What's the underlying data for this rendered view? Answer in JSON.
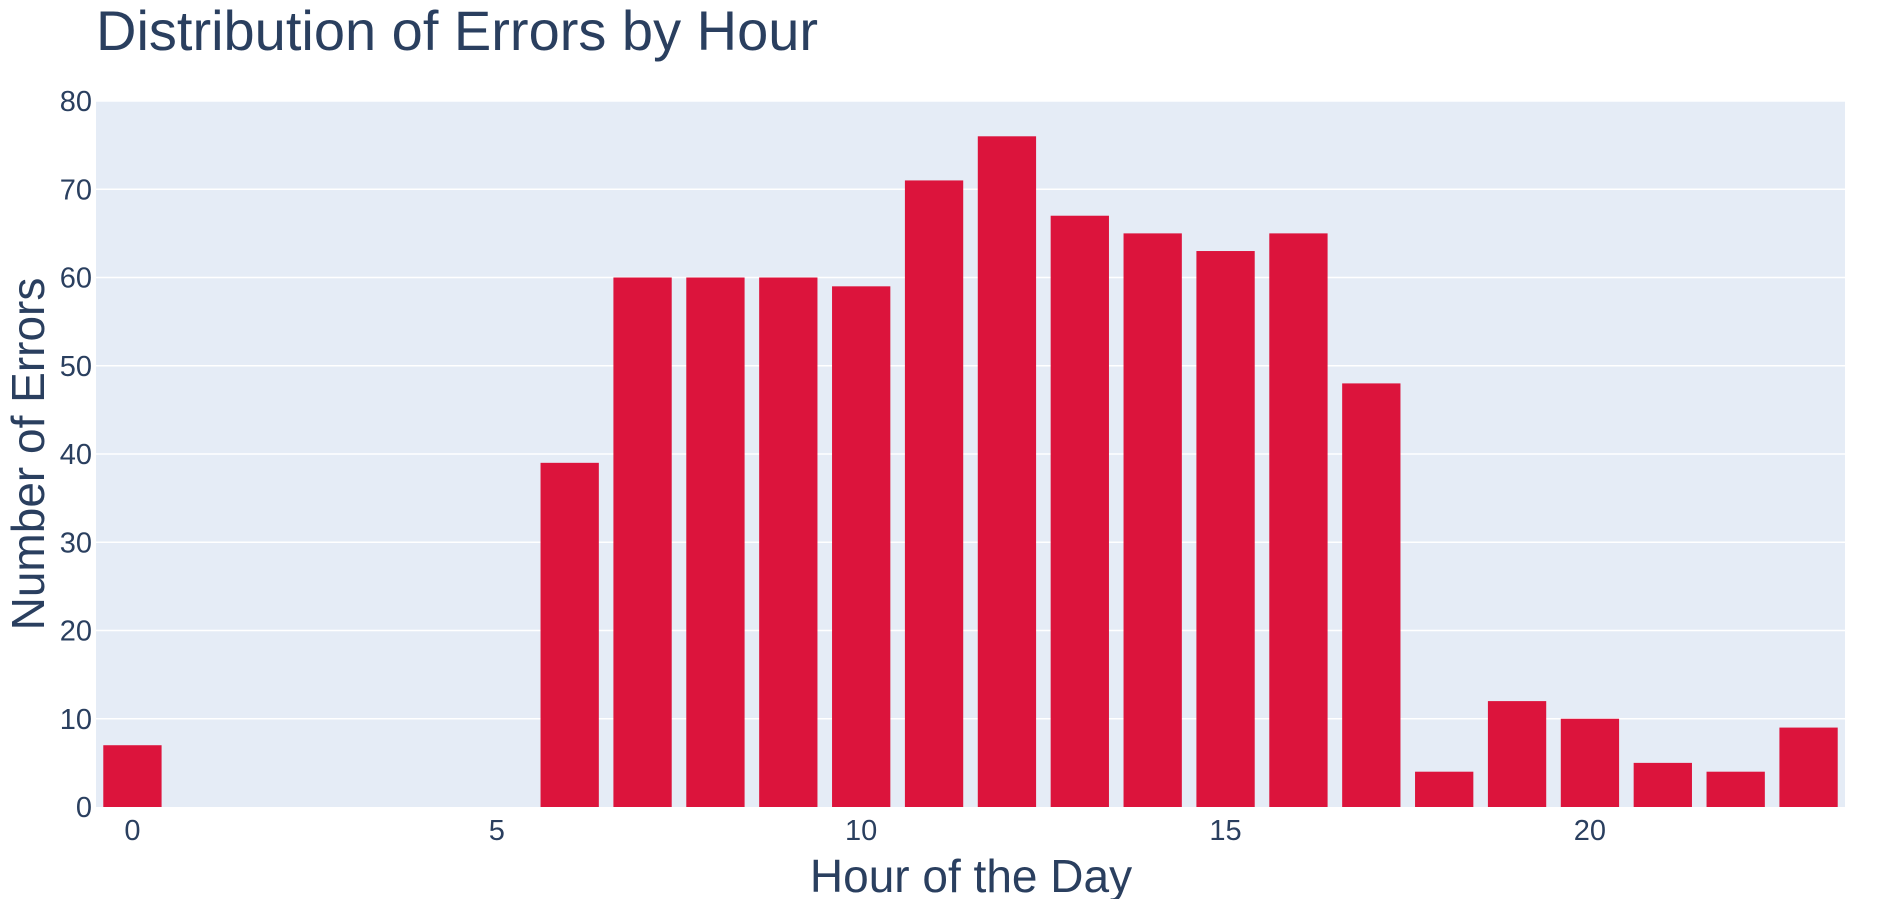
{
  "chart_data": {
    "type": "bar",
    "title": "Distribution of Errors by Hour",
    "xlabel": "Hour of the Day",
    "ylabel": "Number of Errors",
    "x": [
      0,
      6,
      7,
      8,
      9,
      10,
      11,
      12,
      13,
      14,
      15,
      16,
      17,
      18,
      19,
      20,
      21,
      22,
      23
    ],
    "values": [
      7,
      39,
      60,
      60,
      60,
      59,
      71,
      76,
      67,
      65,
      63,
      65,
      48,
      4,
      12,
      10,
      5,
      4,
      9
    ],
    "xlim": [
      -0.5,
      23.5
    ],
    "ylim": [
      0,
      80
    ],
    "xticks": [
      "0",
      "5",
      "10",
      "15",
      "20"
    ],
    "yticks": [
      "0",
      "10",
      "20",
      "30",
      "40",
      "50",
      "60",
      "70",
      "80"
    ],
    "grid": true,
    "colors": {
      "bar": "#dc143c",
      "plot_background": "#e5ecf6",
      "grid": "#ffffff",
      "text": "#2a3f5f"
    }
  }
}
